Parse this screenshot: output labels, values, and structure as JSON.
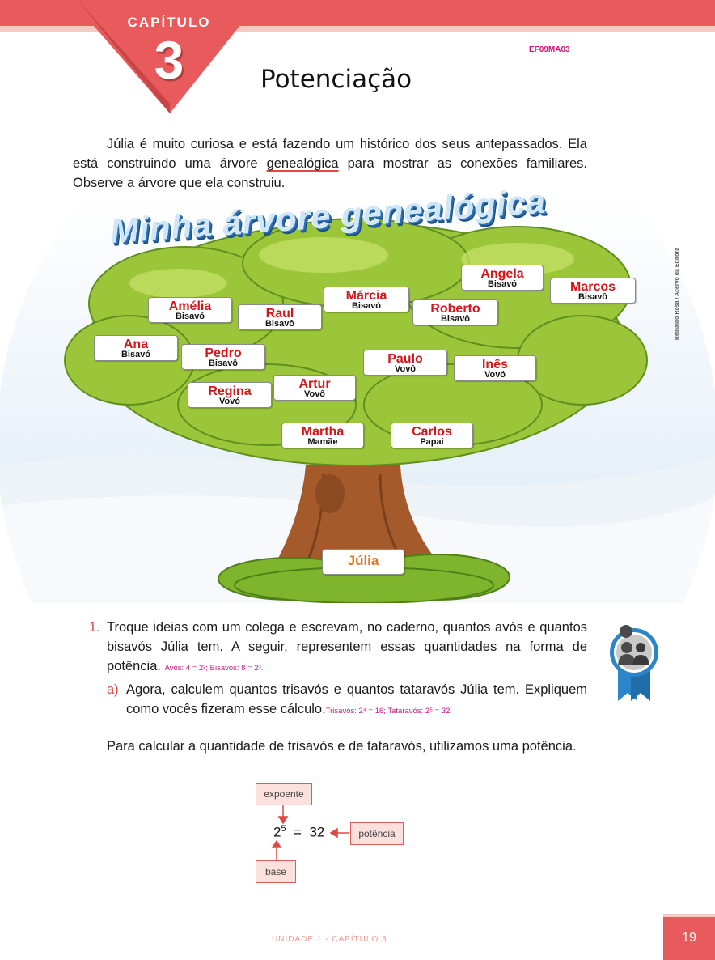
{
  "header": {
    "chapter_label": "CAPÍTULO",
    "chapter_number": "3",
    "code": "EF09MA03",
    "title": "Potenciação"
  },
  "intro": {
    "text_before": "Júlia é muito curiosa e está fazendo um histórico dos seus antepassados. Ela está construindo uma árvore ",
    "highlighted_word": "genealógica",
    "text_after": " para mostrar as conexões familiares. Observe a árvore que ela construiu."
  },
  "tree": {
    "title": "Minha árvore genealógica",
    "credit": "Reinaldo Rosa / Acervo da Editora",
    "colors": {
      "leaves": "#9cc63a",
      "trunk": "#a45a2b",
      "name": "#d3161a",
      "julia": "#e9721a"
    },
    "members": [
      {
        "name": "Angela",
        "role": "Bisavó"
      },
      {
        "name": "Marcos",
        "role": "Bisavô"
      },
      {
        "name": "Márcia",
        "role": "Bisavó"
      },
      {
        "name": "Roberto",
        "role": "Bisavô"
      },
      {
        "name": "Amélia",
        "role": "Bisavó"
      },
      {
        "name": "Raul",
        "role": "Bisavô"
      },
      {
        "name": "Ana",
        "role": "Bisavó"
      },
      {
        "name": "Pedro",
        "role": "Bisavô"
      },
      {
        "name": "Paulo",
        "role": "Vovô"
      },
      {
        "name": "Inês",
        "role": "Vovó"
      },
      {
        "name": "Regina",
        "role": "Vovó"
      },
      {
        "name": "Artur",
        "role": "Vovô"
      },
      {
        "name": "Martha",
        "role": "Mamãe"
      },
      {
        "name": "Carlos",
        "role": "Papai"
      }
    ],
    "child": "Júlia"
  },
  "question1": {
    "number": "1.",
    "text": "Troque ideias com um colega e escrevam, no caderno, quantos avós e quantos bisavós Júlia tem. A seguir, representem essas quantidades na forma de potência.",
    "answer": "Avós: 4 = 2²; Bisavós: 8 = 2³.",
    "sub_letter": "a)",
    "sub_text": "Agora, calculem quantos trisavós e quantos tataravós Júlia tem. Expliquem como vocês fizeram esse cálculo.",
    "sub_answer": "Trisavós: 2⁴ = 16; Tataravós: 2⁵ = 32."
  },
  "explanation": {
    "text": "Para calcular a quantidade de trisavós e de tataravós, utilizamos uma potência."
  },
  "diagram": {
    "base": "2",
    "exponent": "5",
    "equals": "=",
    "result": "32",
    "label_exponent": "expoente",
    "label_power": "potência",
    "label_base": "base"
  },
  "footer": {
    "text": "UNIDADE 1  -  CAPÍTULO 3",
    "page": "19"
  }
}
